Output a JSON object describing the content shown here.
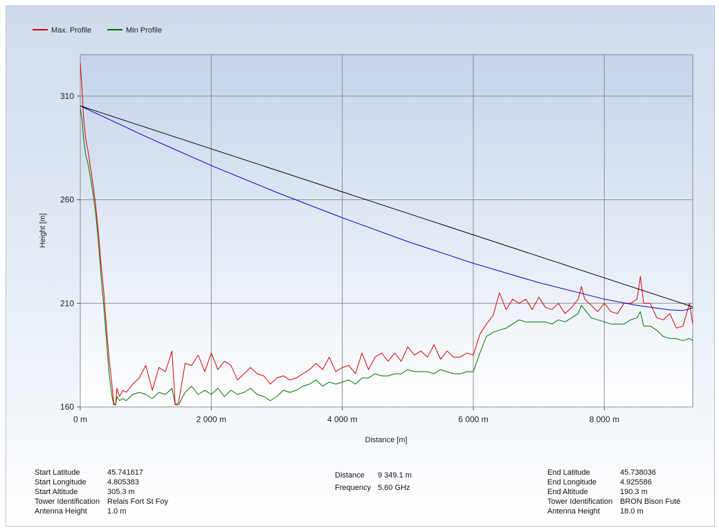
{
  "chart_data": {
    "type": "line",
    "xlabel": "Distance [m]",
    "ylabel": "Height [m]",
    "xlim": [
      0,
      9349.1
    ],
    "ylim": [
      160,
      330
    ],
    "x_ticks": [
      0,
      2000,
      4000,
      6000,
      8000
    ],
    "x_tick_labels": [
      "0 m",
      "2 000 m",
      "4 000 m",
      "6 000 m",
      "8 000 m"
    ],
    "y_ticks": [
      160,
      210,
      260,
      310
    ],
    "y_tick_labels": [
      "160",
      "210",
      "260",
      "310"
    ],
    "grid": true,
    "legend_position": "top-left",
    "series": [
      {
        "name": "Max. Profile",
        "color": "#d40000",
        "x": [
          0,
          30,
          50,
          80,
          120,
          160,
          200,
          240,
          280,
          320,
          360,
          400,
          440,
          480,
          510,
          540,
          560,
          600,
          650,
          700,
          800,
          900,
          1000,
          1100,
          1200,
          1300,
          1400,
          1450,
          1500,
          1600,
          1700,
          1800,
          1900,
          2000,
          2100,
          2200,
          2300,
          2400,
          2500,
          2600,
          2700,
          2800,
          2900,
          3000,
          3100,
          3200,
          3300,
          3400,
          3500,
          3600,
          3700,
          3800,
          3900,
          4000,
          4100,
          4200,
          4300,
          4400,
          4500,
          4600,
          4700,
          4800,
          4900,
          5000,
          5100,
          5200,
          5300,
          5400,
          5500,
          5600,
          5700,
          5800,
          5900,
          6000,
          6100,
          6200,
          6300,
          6400,
          6500,
          6600,
          6700,
          6800,
          6900,
          7000,
          7100,
          7200,
          7300,
          7400,
          7500,
          7600,
          7650,
          7700,
          7800,
          7900,
          8000,
          8100,
          8200,
          8300,
          8400,
          8500,
          8550,
          8600,
          8700,
          8800,
          8900,
          9000,
          9100,
          9200,
          9300,
          9349
        ],
        "y": [
          326,
          312,
          300,
          290,
          283,
          275,
          266,
          256,
          243,
          228,
          215,
          198,
          183,
          172,
          162,
          161,
          169,
          165,
          168,
          167,
          171,
          174,
          180,
          168,
          179,
          177,
          187,
          161,
          162,
          181,
          180,
          185,
          177,
          186,
          178,
          182,
          180,
          173,
          176,
          179,
          176,
          175,
          171,
          174,
          175,
          173,
          174,
          176,
          178,
          181,
          178,
          184,
          177,
          179,
          180,
          176,
          186,
          178,
          184,
          186,
          182,
          186,
          182,
          189,
          185,
          187,
          184,
          190,
          183,
          187,
          184,
          184,
          186,
          185,
          195,
          200,
          204,
          215,
          207,
          212,
          210,
          212,
          207,
          213,
          208,
          207,
          210,
          205,
          208,
          212,
          218,
          212,
          209,
          206,
          210,
          206,
          205,
          210,
          210,
          212,
          223,
          210,
          210,
          203,
          202,
          205,
          198,
          199,
          210,
          200
        ]
      },
      {
        "name": "Min Profile",
        "color": "#007000",
        "x": [
          0,
          30,
          50,
          80,
          120,
          160,
          200,
          240,
          280,
          320,
          360,
          400,
          440,
          480,
          510,
          540,
          560,
          600,
          650,
          700,
          800,
          900,
          1000,
          1100,
          1200,
          1300,
          1400,
          1450,
          1500,
          1600,
          1700,
          1800,
          1900,
          2000,
          2100,
          2200,
          2300,
          2400,
          2500,
          2600,
          2700,
          2800,
          2900,
          3000,
          3100,
          3200,
          3300,
          3400,
          3500,
          3600,
          3700,
          3800,
          3900,
          4000,
          4100,
          4200,
          4300,
          4400,
          4500,
          4600,
          4700,
          4800,
          4900,
          5000,
          5100,
          5200,
          5300,
          5400,
          5500,
          5600,
          5700,
          5800,
          5900,
          6000,
          6100,
          6200,
          6300,
          6400,
          6500,
          6600,
          6700,
          6800,
          6900,
          7000,
          7100,
          7200,
          7300,
          7400,
          7500,
          7600,
          7650,
          7700,
          7800,
          7900,
          8000,
          8100,
          8200,
          8300,
          8400,
          8500,
          8550,
          8600,
          8700,
          8800,
          8900,
          9000,
          9100,
          9200,
          9300,
          9349
        ],
        "y": [
          304,
          298,
          290,
          282,
          277,
          270,
          262,
          252,
          238,
          222,
          208,
          192,
          176,
          166,
          161,
          161,
          165,
          163,
          164,
          163,
          166,
          167,
          166,
          164,
          167,
          166,
          169,
          161,
          161,
          167,
          170,
          166,
          168,
          166,
          169,
          165,
          168,
          166,
          167,
          169,
          166,
          165,
          163,
          165,
          168,
          167,
          168,
          170,
          171,
          173,
          170,
          172,
          171,
          172,
          173,
          171,
          174,
          174,
          176,
          175,
          175,
          176,
          176,
          178,
          177,
          177,
          177,
          176,
          178,
          177,
          176,
          176,
          177,
          177,
          186,
          194,
          196,
          197,
          198,
          200,
          202,
          201,
          201,
          201,
          201,
          200,
          202,
          201,
          203,
          205,
          209,
          207,
          203,
          202,
          201,
          200,
          200,
          200,
          202,
          203,
          206,
          199,
          199,
          197,
          194,
          193,
          193,
          192,
          193,
          192
        ]
      },
      {
        "name": "",
        "color": "#000000",
        "x": [
          0,
          9349.1
        ],
        "y": [
          305.3,
          208.3
        ]
      },
      {
        "name": "",
        "color": "#0000cc",
        "x": [
          0,
          1000,
          2000,
          3000,
          4000,
          5000,
          6000,
          7000,
          8000,
          8500,
          9000,
          9200,
          9349.1
        ],
        "y": [
          305.3,
          290.5,
          276.5,
          263.5,
          251.3,
          239.8,
          229.3,
          220.0,
          212.0,
          209.0,
          206.8,
          206.5,
          207.8
        ]
      }
    ]
  },
  "info": {
    "start": [
      {
        "key": "Start Latitude",
        "value": "45.741617"
      },
      {
        "key": "Start Longitude",
        "value": "4.805383"
      },
      {
        "key": "Start Altitude",
        "value": "305.3 m"
      },
      {
        "key": "Tower Identification",
        "value": "Relais Fort St Foy"
      },
      {
        "key": "Antenna Height",
        "value": "1.0 m"
      }
    ],
    "middle": [
      {
        "key": "Distance",
        "value": "9 349.1 m"
      },
      {
        "key": "Frequency",
        "value": "5.60 GHz"
      }
    ],
    "end": [
      {
        "key": "End Latitude",
        "value": "45.738036"
      },
      {
        "key": "End Longitude",
        "value": "4.925586"
      },
      {
        "key": "End Altitude",
        "value": "190.3 m"
      },
      {
        "key": "Tower Identification",
        "value": "BRON  Bison Futé"
      },
      {
        "key": "Antenna Height",
        "value": "18.0 m"
      }
    ]
  }
}
